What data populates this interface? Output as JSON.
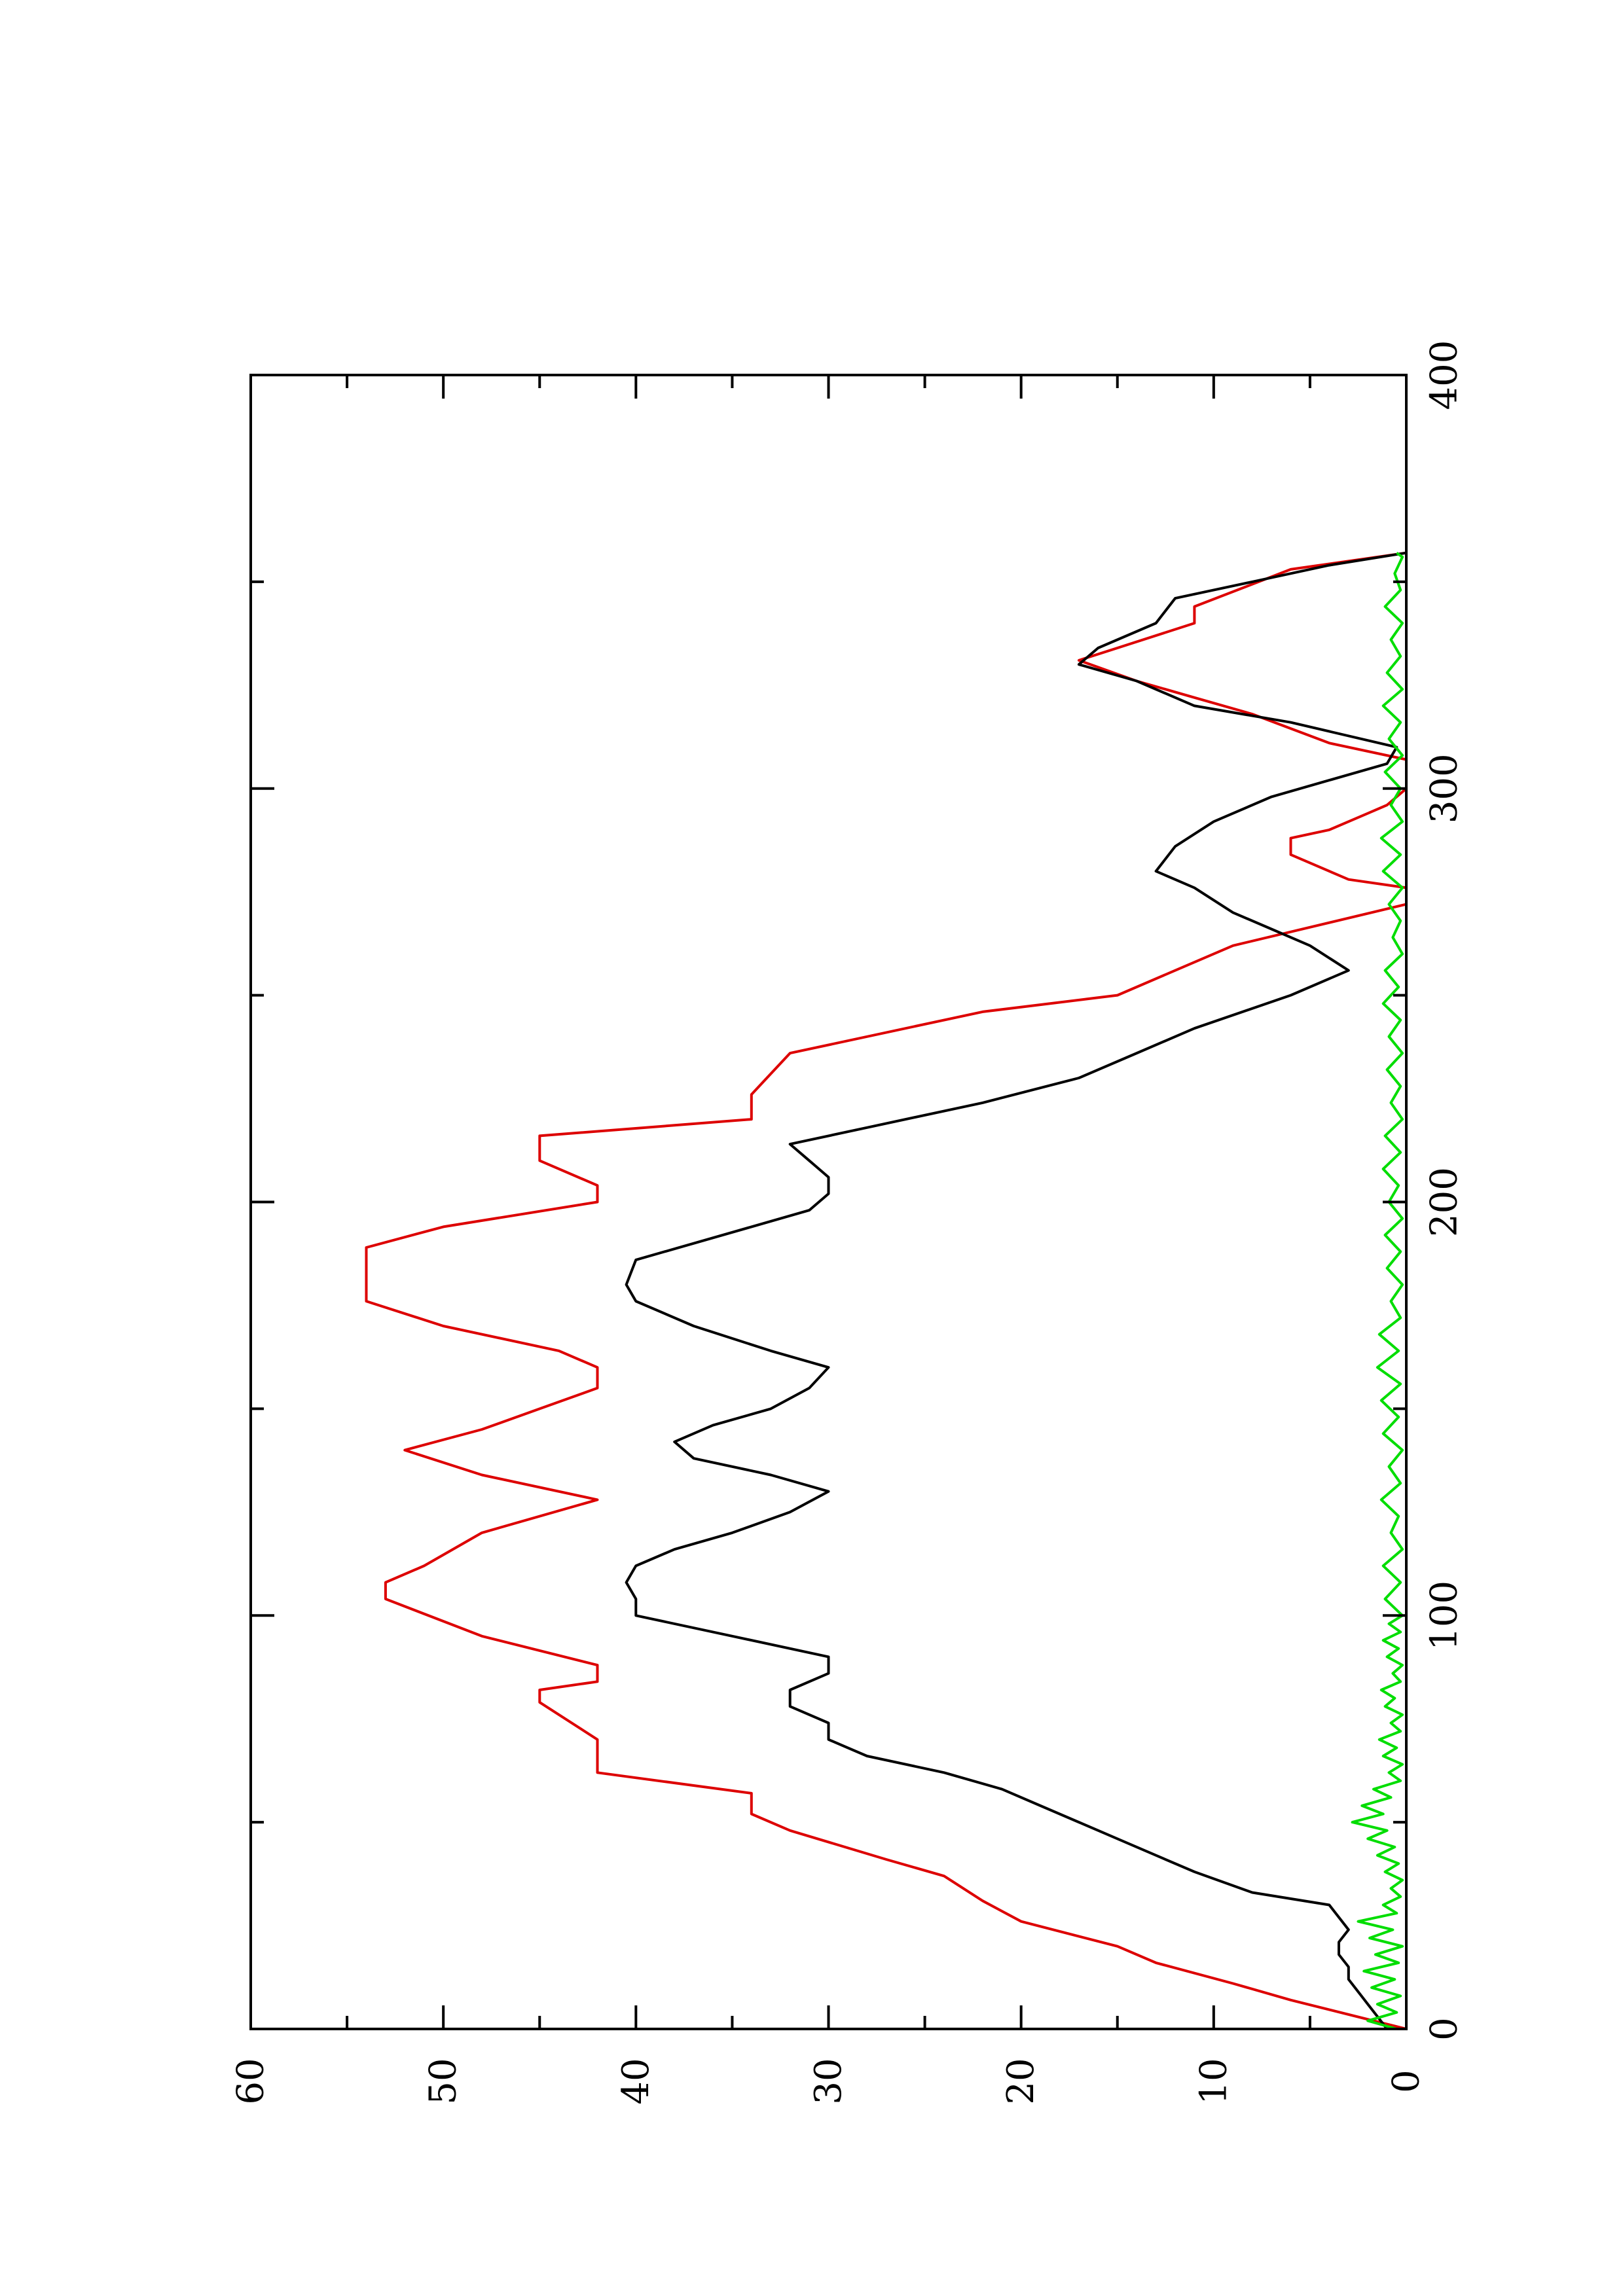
{
  "chart_data": {
    "type": "line",
    "title": "",
    "xlabel": "",
    "ylabel": "",
    "orientation": "rotated 90 degrees counter-clockwise (page is landscape plot shown in portrait)",
    "xlim": [
      0,
      400
    ],
    "ylim": [
      0,
      60
    ],
    "x_ticks": [
      0,
      100,
      200,
      300,
      400
    ],
    "x_tick_labels": [
      "0",
      "100",
      "200",
      "300",
      "400"
    ],
    "x_minor_ticks": [
      50,
      150,
      250,
      350
    ],
    "y_ticks": [
      0,
      10,
      20,
      30,
      40,
      50,
      60
    ],
    "y_tick_labels": [
      "0",
      "10",
      "20",
      "30",
      "40",
      "50",
      "60"
    ],
    "y_minor_ticks": [
      5,
      15,
      25,
      35,
      45,
      55
    ],
    "grid": false,
    "legend": "none",
    "series": [
      {
        "color": "#dd0000",
        "x": [
          0,
          7,
          11,
          16,
          20,
          26,
          31,
          37,
          41,
          48,
          52,
          57,
          62,
          70,
          79,
          82,
          84,
          88,
          95,
          104,
          108,
          112,
          120,
          128,
          134,
          140,
          145,
          150,
          155,
          160,
          164,
          170,
          176,
          189,
          194,
          200,
          204,
          210,
          216,
          220,
          226,
          236,
          246,
          250,
          256,
          262,
          272,
          276,
          278,
          284,
          288,
          290,
          294,
          296,
          300,
          302,
          307,
          311,
          318,
          322,
          326,
          331,
          334,
          340,
          344,
          353,
          357
        ],
        "y": [
          0,
          6,
          9,
          13,
          15,
          20,
          22,
          24,
          27,
          32,
          34,
          34,
          42,
          42,
          45,
          45,
          42,
          42,
          48,
          53,
          53,
          51,
          48,
          42,
          48,
          52,
          48,
          45,
          42,
          42,
          44,
          50,
          54,
          54,
          50,
          42,
          42,
          45,
          45,
          34,
          34,
          32,
          22,
          15,
          12,
          9,
          0,
          0,
          3,
          6,
          6,
          4,
          2,
          1,
          0,
          0,
          0,
          4,
          8,
          11,
          14,
          17,
          15,
          11,
          11,
          6,
          0
        ]
      },
      {
        "color": "#000000",
        "x": [
          0,
          3,
          6,
          9,
          12,
          15,
          18,
          21,
          24,
          27,
          30,
          33,
          38,
          42,
          46,
          50,
          54,
          58,
          62,
          66,
          70,
          74,
          78,
          82,
          86,
          90,
          95,
          100,
          104,
          108,
          112,
          116,
          120,
          125,
          130,
          134,
          138,
          142,
          146,
          150,
          155,
          160,
          164,
          170,
          176,
          180,
          186,
          190,
          194,
          198,
          202,
          206,
          210,
          214,
          218,
          224,
          230,
          236,
          242,
          250,
          256,
          262,
          266,
          270,
          276,
          280,
          286,
          292,
          298,
          302,
          306,
          310,
          316,
          320,
          326,
          330,
          334,
          340,
          346,
          350,
          354,
          357
        ],
        "y": [
          1,
          1.5,
          2,
          2.5,
          3,
          3,
          3.5,
          3.5,
          3,
          3.5,
          4,
          8,
          11,
          13,
          15,
          17,
          19,
          21,
          24,
          28,
          30,
          30,
          32,
          32,
          30,
          30,
          35,
          40,
          40,
          40.5,
          40,
          38,
          35,
          32,
          30,
          33,
          37,
          38,
          36,
          33,
          31,
          30,
          33,
          37,
          40,
          40.5,
          40,
          37,
          34,
          31,
          30,
          30,
          31,
          32,
          28,
          22,
          17,
          14,
          11,
          6,
          3,
          5,
          7,
          9,
          11,
          13,
          12,
          10,
          7,
          4,
          1,
          0.5,
          6,
          11,
          14,
          17,
          16,
          13,
          12,
          8,
          4,
          0
        ]
      },
      {
        "color": "#00dd00",
        "x": [
          0,
          2,
          4,
          6,
          8,
          10,
          12,
          14,
          16,
          18,
          20,
          22,
          24,
          26,
          28,
          30,
          32,
          34,
          36,
          38,
          40,
          42,
          44,
          46,
          48,
          50,
          52,
          54,
          56,
          58,
          60,
          62,
          64,
          66,
          68,
          70,
          72,
          74,
          76,
          78,
          80,
          82,
          84,
          86,
          88,
          90,
          92,
          94,
          96,
          98,
          100,
          104,
          108,
          112,
          116,
          120,
          124,
          128,
          132,
          136,
          140,
          144,
          148,
          152,
          156,
          160,
          164,
          168,
          172,
          176,
          180,
          184,
          188,
          192,
          196,
          200,
          204,
          208,
          212,
          216,
          220,
          224,
          228,
          232,
          236,
          240,
          244,
          248,
          252,
          256,
          260,
          264,
          268,
          272,
          276,
          280,
          284,
          288,
          292,
          296,
          300,
          304,
          308,
          312,
          316,
          320,
          324,
          328,
          332,
          336,
          340,
          344,
          348,
          352,
          356,
          357
        ],
        "y": [
          0.5,
          2,
          0.5,
          1.5,
          0.3,
          1.8,
          0.6,
          2.2,
          0.4,
          1.6,
          0.2,
          1.9,
          0.7,
          2.5,
          0.5,
          1.2,
          0.3,
          0.8,
          0.2,
          1.1,
          0.4,
          1.5,
          0.6,
          2,
          1,
          2.8,
          1.2,
          2.3,
          0.8,
          1.7,
          0.3,
          0.9,
          0.2,
          1.2,
          0.5,
          1.4,
          0.3,
          0.8,
          0.2,
          1.1,
          0.6,
          1.3,
          0.3,
          0.7,
          0.2,
          1,
          0.4,
          1.2,
          0.3,
          0.9,
          0.2,
          1.1,
          0.3,
          1.2,
          0.2,
          0.8,
          0.4,
          1.3,
          0.3,
          0.9,
          0.2,
          1.2,
          0.4,
          1.3,
          0.3,
          1.5,
          0.4,
          1.4,
          0.3,
          0.8,
          0.2,
          1,
          0.3,
          1.1,
          0.2,
          0.9,
          0.4,
          1.2,
          0.3,
          1.1,
          0.2,
          0.8,
          0.3,
          1,
          0.2,
          0.9,
          0.3,
          1.2,
          0.4,
          1.1,
          0.2,
          0.7,
          0.3,
          0.9,
          0.2,
          1.2,
          0.3,
          1.3,
          0.2,
          0.8,
          0.3,
          1.1,
          0.2,
          0.9,
          0.3,
          1.2,
          0.2,
          1,
          0.3,
          0.8,
          0.2,
          1.1,
          0.3,
          0.6,
          0.2,
          0.5
        ]
      }
    ]
  }
}
